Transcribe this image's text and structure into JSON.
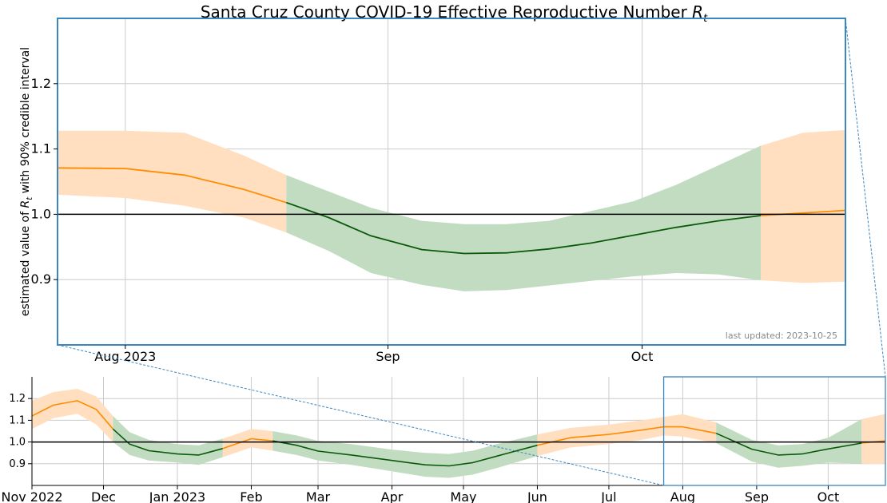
{
  "colors": {
    "above_line": "#ff8c00",
    "above_band": "#ffdfbf",
    "below_line": "#0a5a0a",
    "below_band": "#c2dcc2",
    "reference_line": "#000000",
    "zoom_frame": "#3a86c0",
    "grid": "#cccccc"
  },
  "chart_data": [
    {
      "id": "zoomed",
      "type": "line",
      "title_text": "Santa Cruz County COVID-19 Effective Reproductive Number ",
      "title_math": "R",
      "title_math_sub": "t",
      "ylabel_pre": "estimated value of ",
      "ylabel_math": "R",
      "ylabel_math_sub": "t",
      "ylabel_post": " with 90% credible interval",
      "annotation": "last updated: 2023-10-25",
      "xlim": [
        "2023-07-24",
        "2023-10-25"
      ],
      "ylim": [
        0.8,
        1.3
      ],
      "xticks": [
        {
          "date": "2023-08-01",
          "label": "Aug 2023"
        },
        {
          "date": "2023-09-01",
          "label": "Sep"
        },
        {
          "date": "2023-10-01",
          "label": "Oct"
        }
      ],
      "yticks": [
        {
          "value": 0.9,
          "label": "0.9"
        },
        {
          "value": 1.0,
          "label": "1.0"
        },
        {
          "value": 1.1,
          "label": "1.1"
        },
        {
          "value": 1.2,
          "label": "1.2"
        }
      ],
      "reference_y": 1.0,
      "grid": true,
      "series": [
        {
          "x": [
            "2023-07-24",
            "2023-08-01",
            "2023-08-08",
            "2023-08-15",
            "2023-08-20",
            "2023-08-25",
            "2023-08-30",
            "2023-09-05",
            "2023-09-10",
            "2023-09-15",
            "2023-09-20",
            "2023-09-25",
            "2023-09-30",
            "2023-10-05",
            "2023-10-10",
            "2023-10-15",
            "2023-10-20",
            "2023-10-25"
          ],
          "y": [
            1.071,
            1.07,
            1.06,
            1.038,
            1.018,
            0.995,
            0.967,
            0.946,
            0.94,
            0.941,
            0.947,
            0.956,
            0.968,
            0.98,
            0.99,
            0.998,
            1.002,
            1.006
          ],
          "low": [
            1.03,
            1.025,
            1.013,
            0.995,
            0.972,
            0.944,
            0.91,
            0.892,
            0.882,
            0.884,
            0.891,
            0.898,
            0.905,
            0.91,
            0.908,
            0.899,
            0.895,
            0.897
          ],
          "high": [
            1.128,
            1.128,
            1.125,
            1.09,
            1.06,
            1.035,
            1.01,
            0.99,
            0.985,
            0.985,
            0.99,
            1.005,
            1.02,
            1.045,
            1.075,
            1.105,
            1.125,
            1.129
          ]
        }
      ]
    },
    {
      "id": "overview",
      "type": "line",
      "xlim": [
        "2022-11-01",
        "2023-10-25"
      ],
      "ylim": [
        0.8,
        1.3
      ],
      "xticks": [
        {
          "date": "2022-11-01",
          "label": "Nov 2022"
        },
        {
          "date": "2022-12-01",
          "label": "Dec"
        },
        {
          "date": "2023-01-01",
          "label": "Jan 2023"
        },
        {
          "date": "2023-02-01",
          "label": "Feb"
        },
        {
          "date": "2023-03-01",
          "label": "Mar"
        },
        {
          "date": "2023-04-01",
          "label": "Apr"
        },
        {
          "date": "2023-05-01",
          "label": "May"
        },
        {
          "date": "2023-06-01",
          "label": "Jun"
        },
        {
          "date": "2023-07-01",
          "label": "Jul"
        },
        {
          "date": "2023-08-01",
          "label": "Aug"
        },
        {
          "date": "2023-09-01",
          "label": "Sep"
        },
        {
          "date": "2023-10-01",
          "label": "Oct"
        }
      ],
      "yticks": [
        {
          "value": 0.9,
          "label": "0.9"
        },
        {
          "value": 1.0,
          "label": "1.0"
        },
        {
          "value": 1.1,
          "label": "1.1"
        },
        {
          "value": 1.2,
          "label": "1.2"
        }
      ],
      "reference_y": 1.0,
      "grid": true,
      "zoom_window": [
        "2023-07-24",
        "2023-10-25"
      ],
      "series": [
        {
          "x": [
            "2022-11-01",
            "2022-11-10",
            "2022-11-20",
            "2022-11-28",
            "2022-12-05",
            "2022-12-12",
            "2022-12-20",
            "2023-01-01",
            "2023-01-10",
            "2023-01-20",
            "2023-02-01",
            "2023-02-10",
            "2023-02-20",
            "2023-03-01",
            "2023-03-15",
            "2023-04-01",
            "2023-04-15",
            "2023-04-25",
            "2023-05-05",
            "2023-05-15",
            "2023-06-01",
            "2023-06-15",
            "2023-07-01",
            "2023-07-15",
            "2023-07-24",
            "2023-08-01",
            "2023-08-15",
            "2023-08-30",
            "2023-09-10",
            "2023-09-20",
            "2023-10-01",
            "2023-10-15",
            "2023-10-25"
          ],
          "y": [
            1.12,
            1.17,
            1.19,
            1.15,
            1.06,
            0.99,
            0.96,
            0.945,
            0.94,
            0.97,
            1.015,
            1.005,
            0.985,
            0.958,
            0.94,
            0.915,
            0.895,
            0.89,
            0.905,
            0.935,
            0.985,
            1.02,
            1.035,
            1.055,
            1.07,
            1.07,
            1.04,
            0.967,
            0.94,
            0.945,
            0.968,
            0.995,
            1.006
          ],
          "low": [
            1.06,
            1.11,
            1.13,
            1.08,
            1.0,
            0.94,
            0.915,
            0.905,
            0.895,
            0.93,
            0.975,
            0.96,
            0.94,
            0.915,
            0.895,
            0.865,
            0.84,
            0.835,
            0.85,
            0.88,
            0.935,
            0.975,
            0.99,
            1.01,
            1.03,
            1.025,
            0.995,
            0.91,
            0.882,
            0.89,
            0.905,
            0.9,
            0.897
          ],
          "high": [
            1.19,
            1.23,
            1.245,
            1.21,
            1.12,
            1.045,
            1.01,
            0.99,
            0.985,
            1.015,
            1.06,
            1.05,
            1.03,
            1.005,
            0.99,
            0.965,
            0.95,
            0.945,
            0.96,
            0.99,
            1.035,
            1.065,
            1.08,
            1.1,
            1.115,
            1.128,
            1.09,
            1.01,
            0.985,
            0.99,
            1.02,
            1.105,
            1.129
          ]
        }
      ]
    }
  ]
}
